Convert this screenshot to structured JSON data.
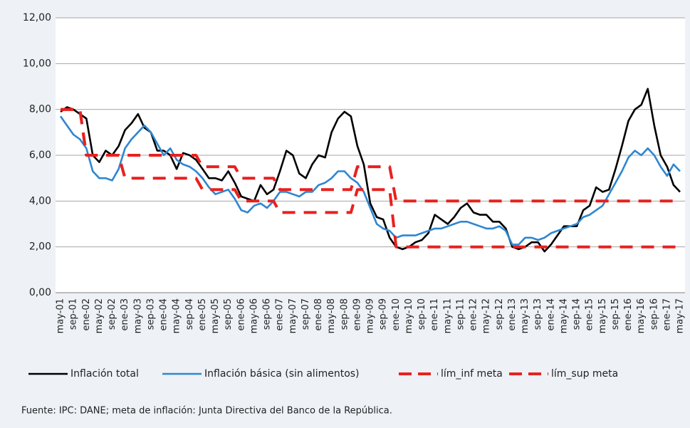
{
  "chart_data": {
    "type": "line",
    "categories": [
      "may-01",
      null,
      "sep-01",
      null,
      "ene-02",
      null,
      "may-02",
      null,
      "sep-02",
      null,
      "ene-03",
      null,
      "may-03",
      null,
      "sep-03",
      null,
      "ene-04",
      null,
      "may-04",
      null,
      "sep-04",
      null,
      "ene-05",
      null,
      "may-05",
      null,
      "sep-05",
      null,
      "ene-06",
      null,
      "may-06",
      null,
      "sep-06",
      null,
      "ene-07",
      null,
      "may-07",
      null,
      "sep-07",
      null,
      "ene-08",
      null,
      "may-08",
      null,
      "sep-08",
      null,
      "ene-09",
      null,
      "may-09",
      null,
      "sep-09",
      null,
      "ene-10",
      null,
      "may-10",
      null,
      "sep-10",
      null,
      "ene-11",
      null,
      "may-11",
      null,
      "sep-11",
      null,
      "ene-12",
      null,
      "may-12",
      null,
      "sep-12",
      null,
      "ene-13",
      null,
      "may-13",
      null,
      "sep-13",
      null,
      "ene-14",
      null,
      "may-14",
      null,
      "sep-14",
      null,
      "ene-15",
      null,
      "may-15",
      null,
      "sep-15",
      null,
      "ene-16",
      null,
      "may-16",
      null,
      "sep-16",
      null,
      "ene-17",
      null,
      "may-17"
    ],
    "series": [
      {
        "name": "Inflación total",
        "color": "#000000",
        "line_style": "solid",
        "values": [
          7.9,
          8.1,
          8.0,
          7.8,
          7.6,
          6.0,
          5.7,
          6.2,
          6.0,
          6.4,
          7.1,
          7.4,
          7.8,
          7.2,
          7.0,
          6.2,
          6.2,
          6.0,
          5.4,
          6.1,
          6.0,
          5.8,
          5.4,
          5.0,
          5.0,
          4.9,
          5.3,
          4.8,
          4.2,
          4.1,
          4.0,
          4.7,
          4.3,
          4.5,
          5.3,
          6.2,
          6.0,
          5.2,
          5.0,
          5.6,
          6.0,
          5.9,
          7.0,
          7.6,
          7.9,
          7.7,
          6.4,
          5.6,
          3.9,
          3.3,
          3.2,
          2.4,
          2.0,
          1.9,
          2.0,
          2.2,
          2.3,
          2.6,
          3.4,
          3.2,
          3.0,
          3.3,
          3.7,
          3.9,
          3.5,
          3.4,
          3.4,
          3.1,
          3.1,
          2.8,
          2.0,
          1.9,
          2.0,
          2.2,
          2.2,
          1.8,
          2.1,
          2.5,
          2.9,
          2.9,
          2.9,
          3.6,
          3.8,
          4.6,
          4.4,
          4.5,
          5.4,
          6.4,
          7.5,
          8.0,
          8.2,
          8.9,
          7.3,
          6.0,
          5.5,
          4.7,
          4.4
        ]
      },
      {
        "name": "Inflación básica (sin alimentos)",
        "color": "#2e86d1",
        "line_style": "solid",
        "values": [
          7.7,
          7.3,
          6.9,
          6.7,
          6.3,
          5.3,
          5.0,
          5.0,
          4.9,
          5.4,
          6.3,
          6.7,
          7.0,
          7.3,
          7.0,
          6.5,
          6.0,
          6.3,
          5.8,
          5.6,
          5.5,
          5.3,
          5.0,
          4.6,
          4.3,
          4.4,
          4.5,
          4.1,
          3.6,
          3.5,
          3.8,
          3.9,
          3.7,
          4.0,
          4.4,
          4.4,
          4.3,
          4.2,
          4.4,
          4.4,
          4.7,
          4.8,
          5.0,
          5.3,
          5.3,
          5.0,
          4.8,
          4.4,
          3.7,
          3.0,
          2.8,
          2.7,
          2.4,
          2.5,
          2.5,
          2.5,
          2.6,
          2.7,
          2.8,
          2.8,
          2.9,
          3.0,
          3.1,
          3.1,
          3.0,
          2.9,
          2.8,
          2.8,
          2.9,
          2.7,
          2.1,
          2.1,
          2.4,
          2.4,
          2.3,
          2.4,
          2.6,
          2.7,
          2.8,
          2.9,
          3.0,
          3.3,
          3.4,
          3.6,
          3.8,
          4.3,
          4.8,
          5.3,
          5.9,
          6.2,
          6.0,
          6.3,
          6.0,
          5.5,
          5.1,
          5.6,
          5.3
        ]
      },
      {
        "name": "lím_inf meta",
        "color": "#e8211f",
        "line_style": "dashed",
        "values": [
          8,
          8,
          8,
          8,
          6,
          6,
          6,
          6,
          6,
          6,
          5,
          5,
          5,
          5,
          5,
          5,
          5,
          5,
          5,
          5,
          5,
          5,
          4.5,
          4.5,
          4.5,
          4.5,
          4.5,
          4.5,
          4,
          4,
          4,
          4,
          4,
          4,
          3.5,
          3.5,
          3.5,
          3.5,
          3.5,
          3.5,
          3.5,
          3.5,
          3.5,
          3.5,
          3.5,
          3.5,
          4.5,
          4.5,
          4.5,
          4.5,
          4.5,
          4.5,
          2,
          2,
          2,
          2,
          2,
          2,
          2,
          2,
          2,
          2,
          2,
          2,
          2,
          2,
          2,
          2,
          2,
          2,
          2,
          2,
          2,
          2,
          2,
          2,
          2,
          2,
          2,
          2,
          2,
          2,
          2,
          2,
          2,
          2,
          2,
          2,
          2,
          2,
          2,
          2,
          2,
          2,
          2,
          2,
          2
        ]
      },
      {
        "name": "lím_sup meta",
        "color": "#e8211f",
        "line_style": "dashed",
        "values": [
          8,
          8,
          8,
          8,
          6,
          6,
          6,
          6,
          6,
          6,
          6,
          6,
          6,
          6,
          6,
          6,
          6,
          6,
          6,
          6,
          6,
          6,
          5.5,
          5.5,
          5.5,
          5.5,
          5.5,
          5.5,
          5,
          5,
          5,
          5,
          5,
          5,
          4.5,
          4.5,
          4.5,
          4.5,
          4.5,
          4.5,
          4.5,
          4.5,
          4.5,
          4.5,
          4.5,
          4.5,
          5.5,
          5.5,
          5.5,
          5.5,
          5.5,
          5.5,
          4,
          4,
          4,
          4,
          4,
          4,
          4,
          4,
          4,
          4,
          4,
          4,
          4,
          4,
          4,
          4,
          4,
          4,
          4,
          4,
          4,
          4,
          4,
          4,
          4,
          4,
          4,
          4,
          4,
          4,
          4,
          4,
          4,
          4,
          4,
          4,
          4,
          4,
          4,
          4,
          4,
          4,
          4,
          4,
          4
        ]
      }
    ],
    "ylim": [
      0,
      12
    ],
    "yticks": [
      {
        "value": 0,
        "label": "0,00"
      },
      {
        "value": 2,
        "label": "2,00"
      },
      {
        "value": 4,
        "label": "4,00"
      },
      {
        "value": 6,
        "label": "6,00"
      },
      {
        "value": 8,
        "label": "8,00"
      },
      {
        "value": 10,
        "label": "10,00"
      },
      {
        "value": 12,
        "label": "12,00"
      }
    ],
    "grid": true,
    "legend": "bottom",
    "source": "Fuente: IPC: DANE; meta de inflación: Junta Directiva del Banco de la República."
  }
}
